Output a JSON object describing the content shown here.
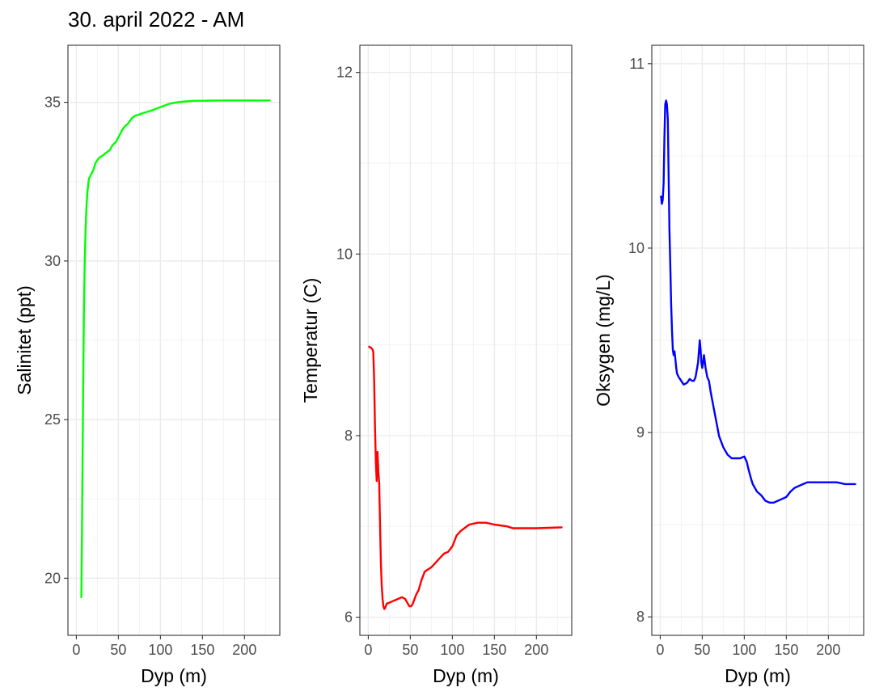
{
  "title": "30. april 2022 - AM",
  "chart_data": [
    {
      "type": "line",
      "xlabel": "Dyp (m)",
      "ylabel": "Salinitet (ppt)",
      "xlim": [
        -10,
        242
      ],
      "ylim": [
        18.2,
        36.8
      ],
      "xticks": [
        0,
        50,
        100,
        150,
        200
      ],
      "yticks": [
        20,
        25,
        30,
        35
      ],
      "grid": true,
      "series": [
        {
          "color": "#00ff00",
          "x": [
            6,
            7,
            8,
            9,
            10,
            11,
            12,
            13,
            14,
            15,
            17,
            20,
            23,
            27,
            30,
            35,
            40,
            43,
            47,
            52,
            55,
            58,
            62,
            66,
            70,
            75,
            80,
            90,
            100,
            110,
            120,
            130,
            140,
            150,
            170,
            200,
            230
          ],
          "y": [
            19.4,
            22.5,
            25.5,
            28.5,
            30.0,
            31.0,
            31.7,
            32.1,
            32.4,
            32.6,
            32.7,
            32.85,
            33.1,
            33.25,
            33.3,
            33.4,
            33.5,
            33.65,
            33.75,
            34.0,
            34.15,
            34.25,
            34.35,
            34.5,
            34.58,
            34.62,
            34.67,
            34.75,
            34.85,
            34.95,
            35.0,
            35.03,
            35.05,
            35.05,
            35.06,
            35.06,
            35.06
          ]
        }
      ]
    },
    {
      "type": "line",
      "xlabel": "Dyp (m)",
      "ylabel": "Temperatur (C)",
      "xlim": [
        -10,
        242
      ],
      "ylim": [
        5.8,
        12.3
      ],
      "xticks": [
        0,
        50,
        100,
        150,
        200
      ],
      "yticks": [
        6,
        8,
        10,
        12
      ],
      "grid": true,
      "series": [
        {
          "color": "#ff0000",
          "x": [
            1,
            3,
            5,
            6,
            7,
            8,
            9,
            10,
            11,
            12,
            13,
            14,
            15,
            16,
            17,
            18,
            19,
            20,
            22,
            25,
            30,
            35,
            40,
            44,
            47,
            49,
            51,
            53,
            55,
            57,
            60,
            63,
            67,
            70,
            75,
            80,
            85,
            90,
            95,
            100,
            105,
            110,
            120,
            130,
            140,
            150,
            165,
            172,
            180,
            200,
            230
          ],
          "y": [
            8.98,
            8.97,
            8.95,
            8.92,
            8.6,
            8.1,
            7.7,
            7.5,
            7.82,
            7.6,
            7.48,
            7.0,
            6.6,
            6.35,
            6.2,
            6.12,
            6.09,
            6.1,
            6.15,
            6.16,
            6.18,
            6.2,
            6.22,
            6.2,
            6.15,
            6.12,
            6.12,
            6.15,
            6.2,
            6.25,
            6.3,
            6.4,
            6.5,
            6.52,
            6.55,
            6.6,
            6.65,
            6.7,
            6.72,
            6.78,
            6.9,
            6.95,
            7.02,
            7.04,
            7.04,
            7.02,
            7.0,
            6.98,
            6.98,
            6.98,
            6.99
          ]
        }
      ]
    },
    {
      "type": "line",
      "xlabel": "Dyp (m)",
      "ylabel": "Oksygen (mg/L)",
      "xlim": [
        -10,
        242
      ],
      "ylim": [
        7.9,
        11.1
      ],
      "xticks": [
        0,
        50,
        100,
        150,
        200
      ],
      "yticks": [
        8,
        9,
        10,
        11
      ],
      "grid": true,
      "series": [
        {
          "color": "#0000ff",
          "x": [
            1,
            2,
            3,
            4,
            5,
            6,
            7,
            8,
            9,
            10,
            11,
            12,
            13,
            14,
            15,
            16,
            17,
            18,
            19,
            20,
            22,
            25,
            28,
            32,
            35,
            38,
            40,
            42,
            45,
            47,
            48,
            49,
            50,
            51,
            52,
            54,
            56,
            58,
            60,
            65,
            70,
            75,
            80,
            85,
            90,
            95,
            100,
            103,
            105,
            108,
            110,
            115,
            120,
            125,
            130,
            135,
            140,
            145,
            150,
            155,
            160,
            165,
            170,
            175,
            180,
            190,
            200,
            210,
            220,
            232
          ],
          "y": [
            10.28,
            10.24,
            10.26,
            10.35,
            10.6,
            10.78,
            10.8,
            10.78,
            10.7,
            10.4,
            10.1,
            9.9,
            9.7,
            9.55,
            9.45,
            9.42,
            9.44,
            9.4,
            9.35,
            9.32,
            9.3,
            9.28,
            9.26,
            9.27,
            9.29,
            9.28,
            9.28,
            9.3,
            9.38,
            9.5,
            9.45,
            9.38,
            9.35,
            9.38,
            9.42,
            9.35,
            9.3,
            9.28,
            9.22,
            9.1,
            8.98,
            8.92,
            8.88,
            8.86,
            8.86,
            8.86,
            8.87,
            8.84,
            8.8,
            8.75,
            8.72,
            8.68,
            8.66,
            8.63,
            8.62,
            8.62,
            8.63,
            8.64,
            8.65,
            8.68,
            8.7,
            8.71,
            8.72,
            8.73,
            8.73,
            8.73,
            8.73,
            8.73,
            8.72,
            8.72
          ]
        }
      ]
    }
  ]
}
